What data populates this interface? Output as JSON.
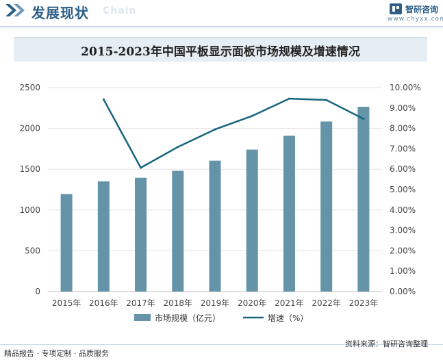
{
  "header": {
    "title": "发展现状",
    "subtitle": "Chain",
    "brand_name": "智研咨询",
    "brand_url": "www.chyxx.com"
  },
  "chart_data": {
    "type": "bar",
    "title": "2015-2023年中国平板显示面板市场规模及增速情况",
    "categories": [
      "2015年",
      "2016年",
      "2017年",
      "2018年",
      "2019年",
      "2020年",
      "2021年",
      "2022年",
      "2023年"
    ],
    "series": [
      {
        "name": "市场规模（亿元）",
        "type": "bar",
        "axis": "left",
        "values": [
          1195,
          1350,
          1395,
          1480,
          1605,
          1740,
          1910,
          2085,
          2265
        ]
      },
      {
        "name": "增速（%）",
        "type": "line",
        "axis": "right",
        "values": [
          null,
          9.42,
          6.07,
          7.09,
          7.95,
          8.61,
          9.46,
          9.39,
          8.47
        ]
      }
    ],
    "y_left": {
      "min": 0,
      "max": 2500,
      "step": 500,
      "ticks": [
        "0",
        "500",
        "1000",
        "1500",
        "2000",
        "2500"
      ]
    },
    "y_right": {
      "min": 0,
      "max": 10,
      "step": 1,
      "ticks": [
        "0.00%",
        "1.00%",
        "2.00%",
        "3.00%",
        "4.00%",
        "5.00%",
        "6.00%",
        "7.00%",
        "8.00%",
        "9.00%",
        "10.00%"
      ]
    },
    "legend_position": "bottom",
    "grid": true,
    "colors": {
      "bar": "#6593a8",
      "line": "#17647e",
      "grid": "#e2e2e2"
    }
  },
  "footer": {
    "left": "精品报告 · 专项定制 · 品质服务",
    "source": "资料来源：智研咨询整理"
  }
}
